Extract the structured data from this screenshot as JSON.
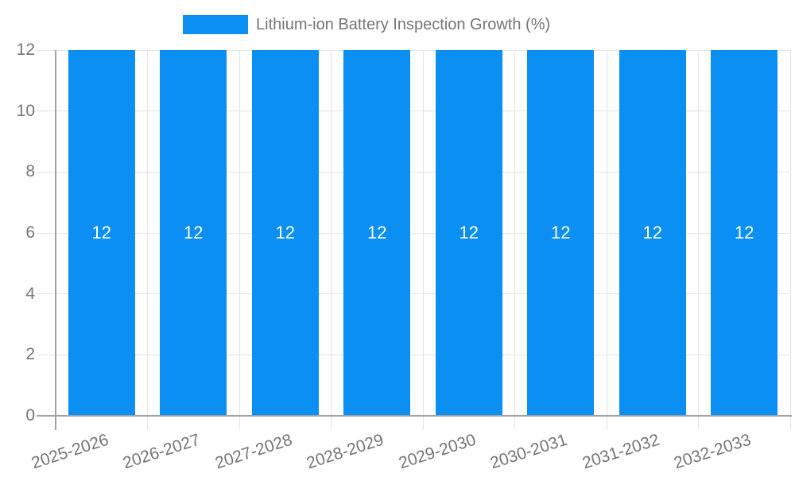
{
  "chart_data": {
    "type": "bar",
    "title": "Lithium-ion Battery Inspection Growth (%)",
    "categories": [
      "2025-2026",
      "2026-2027",
      "2027-2028",
      "2028-2029",
      "2029-2030",
      "2030-2031",
      "2031-2032",
      "2032-2033"
    ],
    "series": [
      {
        "name": "Lithium-ion Battery Inspection Growth (%)",
        "values": [
          12,
          12,
          12,
          12,
          12,
          12,
          12,
          12
        ]
      }
    ],
    "bar_value_labels": [
      "12",
      "12",
      "12",
      "12",
      "12",
      "12",
      "12",
      "12"
    ],
    "xlabel": "",
    "ylabel": "",
    "ylim": [
      0,
      12
    ],
    "yticks": [
      0,
      2,
      4,
      6,
      8,
      10,
      12
    ],
    "grid": true,
    "legend_position": "top",
    "colors": {
      "bar": "#0b8ff2",
      "bar_label_text": "#ffffff",
      "gridline": "#e3e3e3",
      "axis_line": "#a2a2a2",
      "axis_text": "#757575",
      "background": "#ffffff"
    }
  }
}
